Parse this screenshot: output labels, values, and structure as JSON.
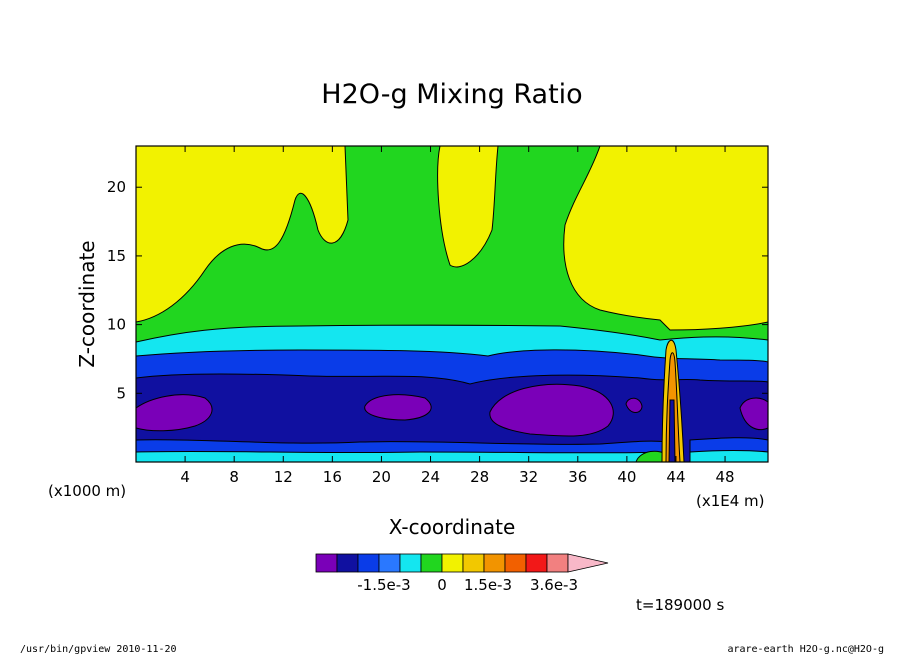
{
  "chart_data": {
    "type": "contour",
    "title": "H2O-g Mixing Ratio",
    "xlabel": "X-coordinate",
    "ylabel": "Z-coordinate",
    "x_unit_left": "(x1000 m)",
    "x_unit_right": "(x1E4 m)",
    "xlim": [
      0,
      51.5
    ],
    "ylim": [
      0,
      23
    ],
    "xticks": [
      4,
      8,
      12,
      16,
      20,
      24,
      28,
      32,
      36,
      40,
      44,
      48
    ],
    "yticks": [
      5,
      10,
      15,
      20
    ],
    "time_label": "t=189000 s",
    "colorbar": {
      "colors": [
        "#7a00b8",
        "#1010a0",
        "#0a3ce8",
        "#2a78ff",
        "#14e6f0",
        "#21d61f",
        "#f2f200",
        "#f2c800",
        "#f29400",
        "#f26000",
        "#f21818",
        "#f28080",
        "#f8b8c8"
      ],
      "tick_labels": [
        "-1.5e-3",
        "0",
        "1.5e-3",
        "3.6e-3"
      ]
    }
  },
  "footer": {
    "left": "/usr/bin/gpview   2010-11-20",
    "right": "arare-earth_H2O-g.nc@H2O-g"
  }
}
